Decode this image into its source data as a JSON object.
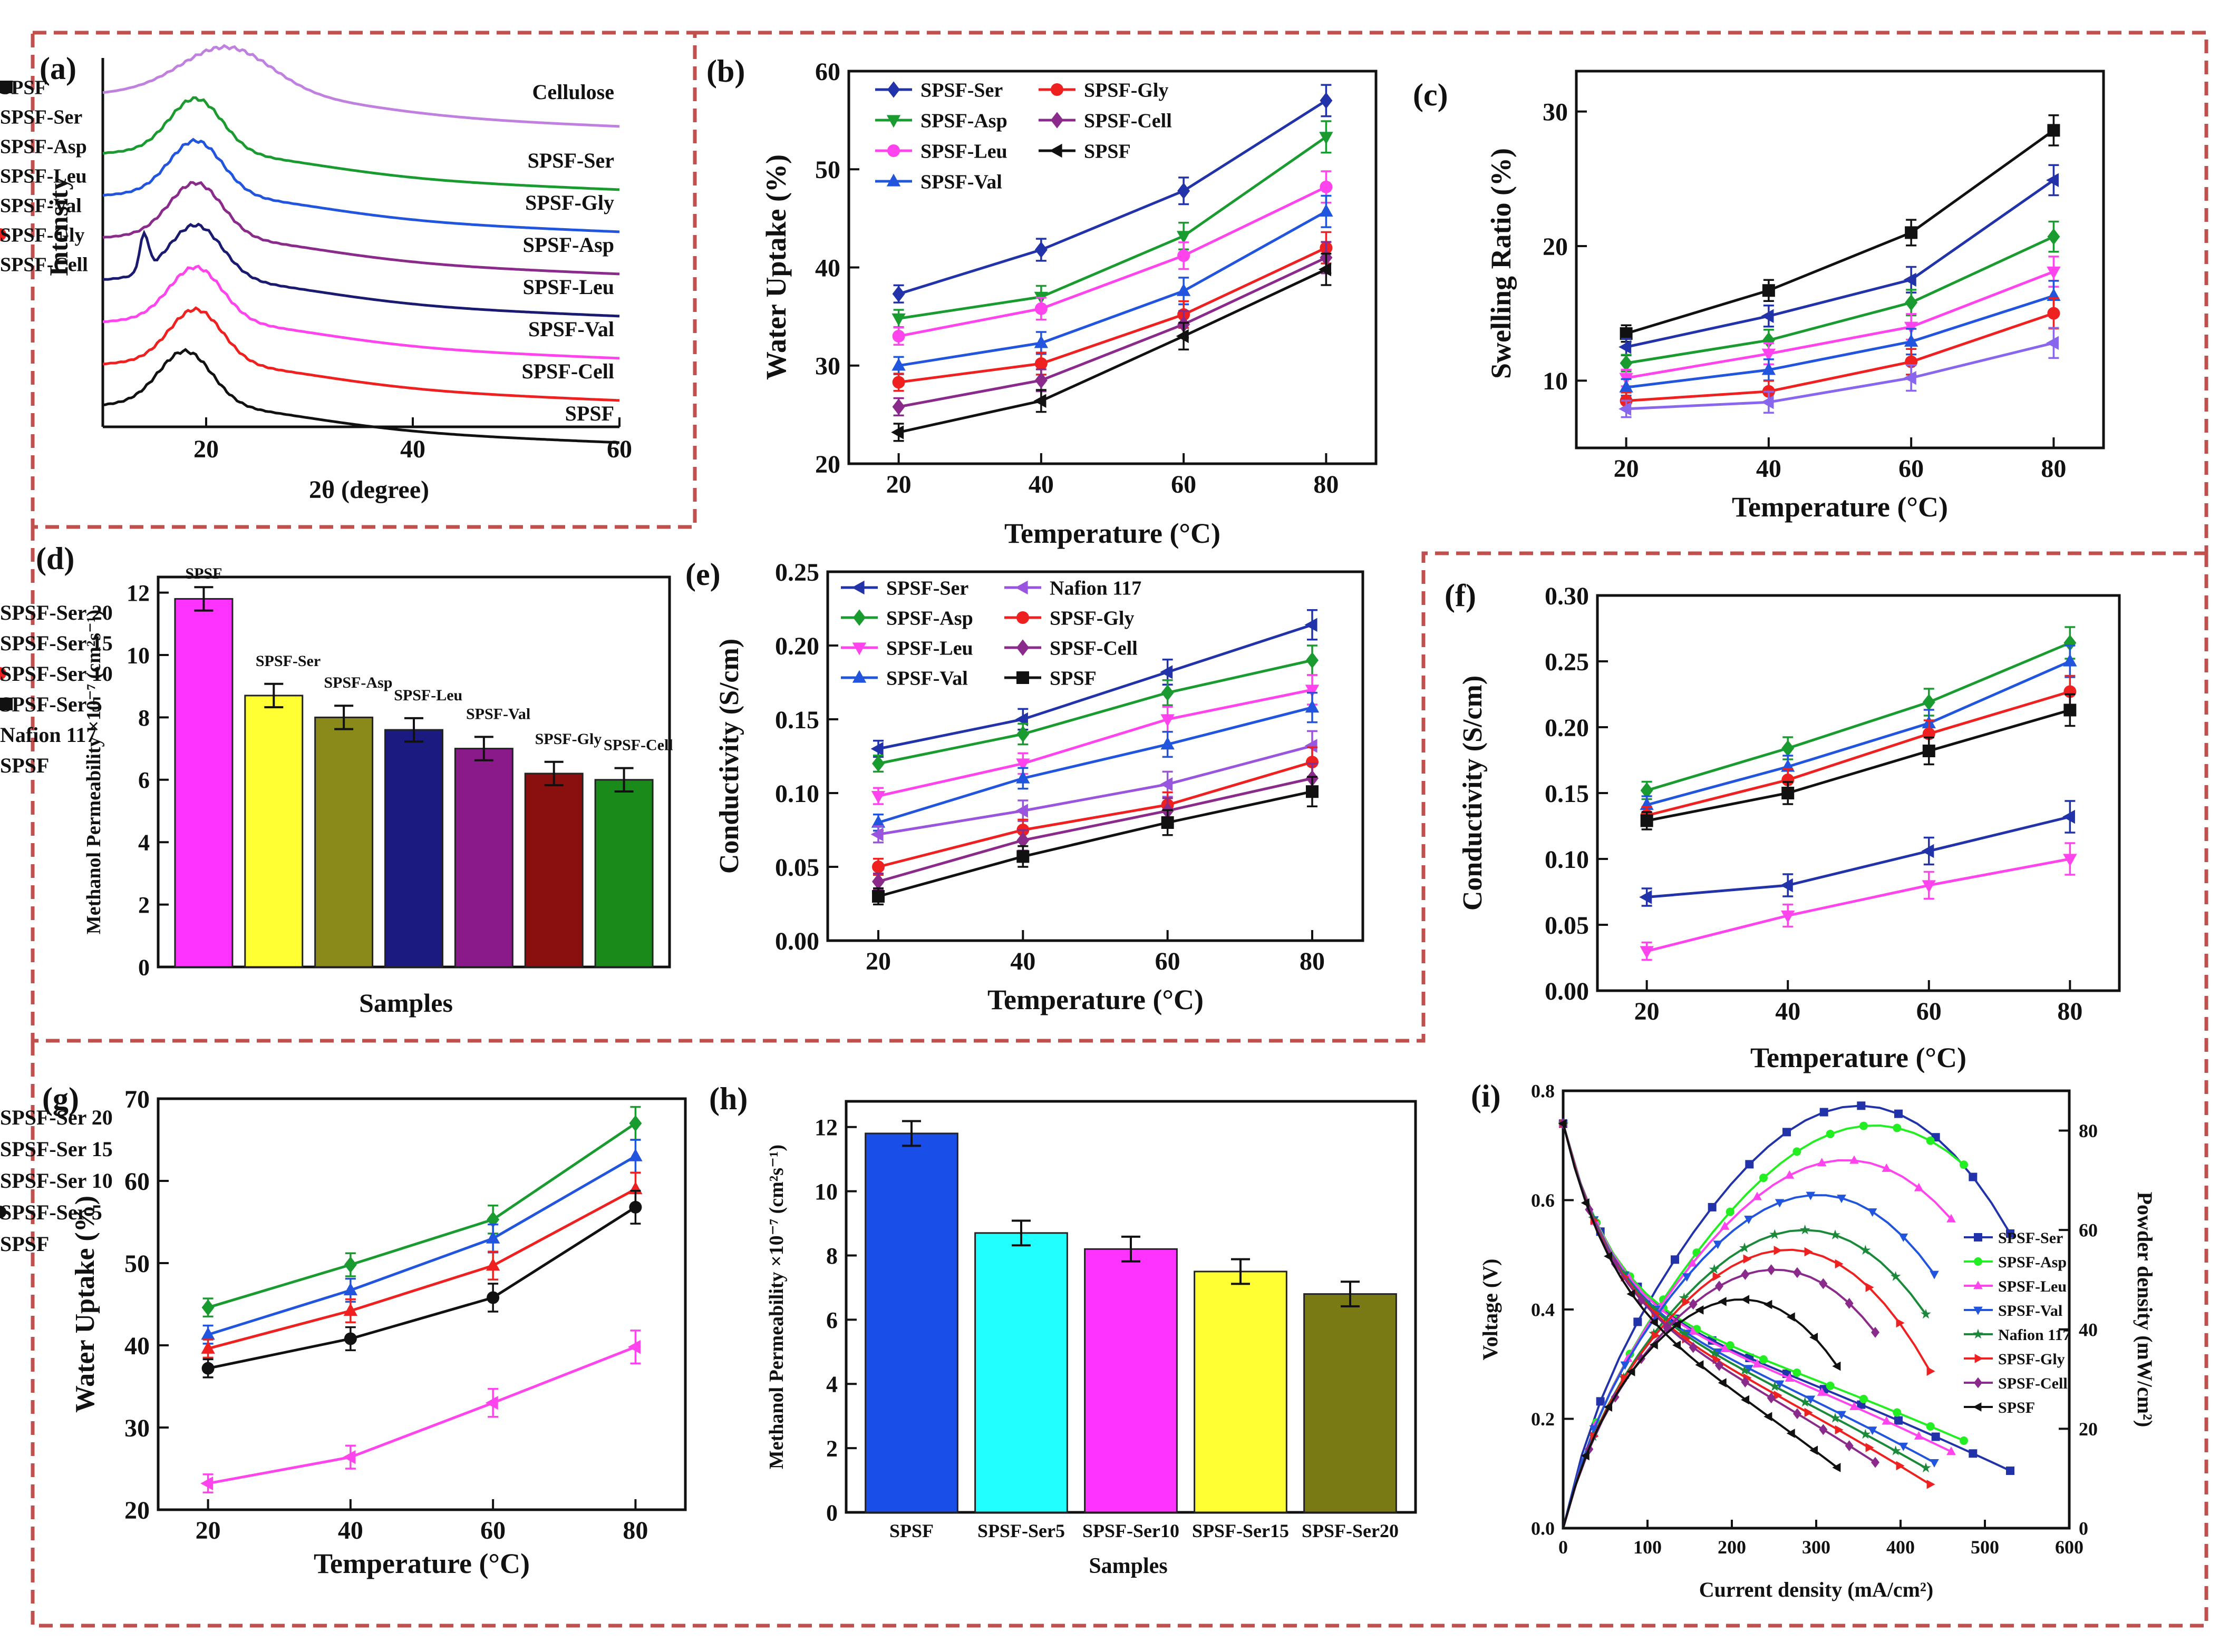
{
  "panel_labels": [
    "(a)",
    "(b)",
    "(c)",
    "(d)",
    "(e)",
    "(f)",
    "(g)",
    "(h)",
    "(i)"
  ],
  "chart_data": [
    {
      "id": "a",
      "type": "line",
      "xlabel": "2θ (degree)",
      "ylabel": "Intensity",
      "xlim": [
        10,
        60
      ],
      "xticks": [
        20,
        40,
        60
      ],
      "series": [
        {
          "name": "Cellulose",
          "color": "#c080e0",
          "peak": 22
        },
        {
          "name": "SPSF-Ser",
          "color": "#1a9b30",
          "peak": 19
        },
        {
          "name": "SPSF-Gly",
          "color": "#2255dd",
          "peak": 19
        },
        {
          "name": "SPSF-Asp",
          "color": "#8a2a8a",
          "peak": 19
        },
        {
          "name": "SPSF-Leu",
          "color": "#1a1a70",
          "peak": 19
        },
        {
          "name": "SPSF-Val",
          "color": "#ff44ee",
          "peak": 19
        },
        {
          "name": "SPSF-Cell",
          "color": "#ee2020",
          "peak": 19
        },
        {
          "name": "SPSF",
          "color": "#111111",
          "peak": 18
        }
      ]
    },
    {
      "id": "b",
      "type": "line",
      "xlabel": "Temperature (°C)",
      "ylabel": "Water Uptake (%)",
      "xlim": [
        13,
        87
      ],
      "ylim": [
        20,
        60
      ],
      "xticks": [
        20,
        40,
        60,
        80
      ],
      "yticks": [
        20,
        30,
        40,
        50,
        60
      ],
      "x": [
        20,
        40,
        60,
        80
      ],
      "series": [
        {
          "name": "SPSF-Ser",
          "color": "#2233aa",
          "marker": "diamond",
          "values": [
            37.3,
            41.8,
            47.8,
            57.0
          ]
        },
        {
          "name": "SPSF-Asp",
          "color": "#1a9b30",
          "marker": "tri-down",
          "values": [
            34.8,
            37.0,
            43.2,
            53.3
          ]
        },
        {
          "name": "SPSF-Leu",
          "color": "#ff44ee",
          "marker": "circle",
          "values": [
            33.0,
            35.8,
            41.2,
            48.2
          ]
        },
        {
          "name": "SPSF-Val",
          "color": "#2255dd",
          "marker": "tri-up",
          "values": [
            30.0,
            32.3,
            37.6,
            45.7
          ]
        },
        {
          "name": "SPSF-Gly",
          "color": "#ee2020",
          "marker": "circle",
          "values": [
            28.3,
            30.2,
            35.2,
            42.0
          ]
        },
        {
          "name": "SPSF-Cell",
          "color": "#8a2a8a",
          "marker": "diamond",
          "values": [
            25.8,
            28.5,
            34.2,
            41.0
          ]
        },
        {
          "name": "SPSF",
          "color": "#111111",
          "marker": "tri-left",
          "values": [
            23.2,
            26.4,
            33.0,
            39.8
          ]
        }
      ]
    },
    {
      "id": "c",
      "type": "line",
      "xlabel": "Temperature (°C)",
      "ylabel": "Swelling Ratio (%)",
      "xlim": [
        13,
        87
      ],
      "ylim": [
        5,
        33
      ],
      "xticks": [
        20,
        40,
        60,
        80
      ],
      "yticks": [
        10,
        20,
        30
      ],
      "x": [
        20,
        40,
        60,
        80
      ],
      "series": [
        {
          "name": "SPSF",
          "color": "#111111",
          "marker": "square",
          "values": [
            13.5,
            16.7,
            21.0,
            28.6
          ]
        },
        {
          "name": "SPSF-Ser",
          "color": "#2233aa",
          "marker": "tri-left",
          "values": [
            12.5,
            14.8,
            17.5,
            24.9
          ]
        },
        {
          "name": "SPSF-Asp",
          "color": "#1a9b30",
          "marker": "diamond",
          "values": [
            11.3,
            13.0,
            15.8,
            20.7
          ]
        },
        {
          "name": "SPSF-Leu",
          "color": "#ff44ee",
          "marker": "tri-down",
          "values": [
            10.2,
            12.0,
            14.0,
            18.1
          ]
        },
        {
          "name": "SPSF-Val",
          "color": "#2255dd",
          "marker": "tri-up",
          "values": [
            9.5,
            10.8,
            12.9,
            16.3
          ]
        },
        {
          "name": "SPSF-Gly",
          "color": "#ee2020",
          "marker": "circle",
          "values": [
            8.5,
            9.2,
            11.4,
            15.0
          ]
        },
        {
          "name": "SPSF-Cell",
          "color": "#8866ee",
          "marker": "tri-left",
          "values": [
            7.9,
            8.4,
            10.2,
            12.8
          ]
        }
      ]
    },
    {
      "id": "d",
      "type": "bar",
      "xlabel": "Samples",
      "ylabel": "Methanol Permeability ×10⁻⁷ (cm²s⁻¹)",
      "ylim": [
        0,
        12.5
      ],
      "yticks": [
        0,
        2,
        4,
        6,
        8,
        10,
        12
      ],
      "categories": [
        "SPSF",
        "SPSF-Ser",
        "SPSF-Asp",
        "SPSF-Leu",
        "SPSF-Val",
        "SPSF-Gly",
        "SPSF-Cell"
      ],
      "values": [
        11.8,
        8.7,
        8.0,
        7.6,
        7.0,
        6.2,
        6.0
      ],
      "colors": [
        "#ff33ff",
        "#ffff33",
        "#8a8a1a",
        "#1a1a80",
        "#8a1a8a",
        "#8a1010",
        "#1a8a1a"
      ]
    },
    {
      "id": "e",
      "type": "line",
      "xlabel": "Temperature (°C)",
      "ylabel": "Conductivity (S/cm)",
      "xlim": [
        13,
        87
      ],
      "ylim": [
        0,
        0.25
      ],
      "xticks": [
        20,
        40,
        60,
        80
      ],
      "yticks": [
        "0.00",
        "0.05",
        "0.10",
        "0.15",
        "0.20",
        "0.25"
      ],
      "x": [
        20,
        40,
        60,
        80
      ],
      "series": [
        {
          "name": "SPSF-Ser",
          "color": "#2233aa",
          "marker": "tri-left",
          "values": [
            0.13,
            0.15,
            0.182,
            0.214
          ]
        },
        {
          "name": "SPSF-Asp",
          "color": "#1a9b30",
          "marker": "diamond",
          "values": [
            0.12,
            0.14,
            0.168,
            0.19
          ]
        },
        {
          "name": "SPSF-Leu",
          "color": "#ff44ee",
          "marker": "tri-down",
          "values": [
            0.098,
            0.12,
            0.15,
            0.17
          ]
        },
        {
          "name": "SPSF-Val",
          "color": "#2255dd",
          "marker": "tri-up",
          "values": [
            0.08,
            0.11,
            0.133,
            0.158
          ]
        },
        {
          "name": "Nafion 117",
          "color": "#9955dd",
          "marker": "tri-left",
          "values": [
            0.072,
            0.088,
            0.106,
            0.132
          ]
        },
        {
          "name": "SPSF-Gly",
          "color": "#ee2020",
          "marker": "circle",
          "values": [
            0.05,
            0.075,
            0.092,
            0.121
          ]
        },
        {
          "name": "SPSF-Cell",
          "color": "#8a2a8a",
          "marker": "diamond",
          "values": [
            0.04,
            0.068,
            0.088,
            0.11
          ]
        },
        {
          "name": "SPSF",
          "color": "#111111",
          "marker": "square",
          "values": [
            0.03,
            0.057,
            0.08,
            0.101
          ]
        }
      ]
    },
    {
      "id": "f",
      "type": "line",
      "xlabel": "Temperature (°C)",
      "ylabel": "Conductivity (S/cm)",
      "xlim": [
        13,
        87
      ],
      "ylim": [
        0,
        0.3
      ],
      "xticks": [
        20,
        40,
        60,
        80
      ],
      "yticks": [
        "0.00",
        "0.05",
        "0.10",
        "0.15",
        "0.20",
        "0.25",
        "0.30"
      ],
      "x": [
        20,
        40,
        60,
        80
      ],
      "series": [
        {
          "name": "SPSF-Ser 20",
          "color": "#1a9b30",
          "marker": "diamond",
          "values": [
            0.152,
            0.184,
            0.219,
            0.264
          ]
        },
        {
          "name": "SPSF-Ser 15",
          "color": "#2255dd",
          "marker": "tri-up",
          "values": [
            0.141,
            0.17,
            0.203,
            0.25
          ]
        },
        {
          "name": "SPSF-Ser 10",
          "color": "#ee2020",
          "marker": "circle",
          "values": [
            0.133,
            0.16,
            0.195,
            0.227
          ]
        },
        {
          "name": "SPSF-Ser  5",
          "color": "#111111",
          "marker": "square",
          "values": [
            0.129,
            0.15,
            0.182,
            0.213
          ]
        },
        {
          "name": "Nafion 117",
          "color": "#2233aa",
          "marker": "tri-left",
          "values": [
            0.071,
            0.08,
            0.106,
            0.132
          ]
        },
        {
          "name": "SPSF",
          "color": "#ff44ee",
          "marker": "tri-down",
          "values": [
            0.03,
            0.057,
            0.08,
            0.1
          ]
        }
      ]
    },
    {
      "id": "g",
      "type": "line",
      "xlabel": "Temperature (°C)",
      "ylabel": "Water Uptake (%)",
      "xlim": [
        13,
        87
      ],
      "ylim": [
        20,
        70
      ],
      "xticks": [
        20,
        40,
        60,
        80
      ],
      "yticks": [
        20,
        30,
        40,
        50,
        60,
        70
      ],
      "x": [
        20,
        40,
        60,
        80
      ],
      "series": [
        {
          "name": "SPSF-Ser 20",
          "color": "#1a9b30",
          "marker": "diamond",
          "values": [
            44.6,
            49.8,
            55.3,
            67.0
          ]
        },
        {
          "name": "SPSF-Ser 15",
          "color": "#2255dd",
          "marker": "tri-up",
          "values": [
            41.3,
            46.7,
            53.0,
            63.0
          ]
        },
        {
          "name": "SPSF-Ser 10",
          "color": "#ee2020",
          "marker": "tri-up",
          "values": [
            39.6,
            44.2,
            49.7,
            59.0
          ]
        },
        {
          "name": "SPSF-Ser 5",
          "color": "#111111",
          "marker": "circle",
          "values": [
            37.2,
            40.8,
            45.8,
            56.8
          ]
        },
        {
          "name": "SPSF",
          "color": "#ff44ee",
          "marker": "tri-left",
          "values": [
            23.2,
            26.4,
            33.0,
            39.8
          ]
        }
      ]
    },
    {
      "id": "h",
      "type": "bar",
      "xlabel": "Samples",
      "ylabel": "Methanol Permeability ×10⁻⁷ (cm²s⁻¹)",
      "ylim": [
        0,
        12.8
      ],
      "yticks": [
        0,
        2,
        4,
        6,
        8,
        10,
        12
      ],
      "categories": [
        "SPSF",
        "SPSF-Ser5",
        "SPSF-Ser10",
        "SPSF-Ser15",
        "SPSF-Ser20"
      ],
      "values": [
        11.8,
        8.7,
        8.2,
        7.5,
        6.8
      ],
      "colors": [
        "#1a4ee8",
        "#22ffff",
        "#ff33ff",
        "#ffff33",
        "#7a7a14"
      ]
    },
    {
      "id": "i",
      "type": "line",
      "xlabel": "Current density (mA/cm²)",
      "ylabel": "Voltage (V)",
      "ylabel_right": "Powder density (mW/cm²)",
      "xlim": [
        0,
        600
      ],
      "ylim": [
        0,
        0.8
      ],
      "ylim_right": [
        0,
        88
      ],
      "xticks": [
        0,
        100,
        200,
        300,
        400,
        500,
        600
      ],
      "yticks": [
        "0.0",
        "0.2",
        "0.4",
        "0.6",
        "0.8"
      ],
      "yticks_right": [
        0,
        20,
        40,
        60,
        80
      ],
      "series": [
        {
          "name": "SPSF-Ser",
          "color": "#2233aa",
          "marker": "square",
          "max_current": 530,
          "peak_power": 85,
          "end_voltage": 0.105
        },
        {
          "name": "SPSF-Asp",
          "color": "#22ee22",
          "marker": "circle",
          "max_current": 475,
          "peak_power": 81,
          "end_voltage": 0.16
        },
        {
          "name": "SPSF-Leu",
          "color": "#ff44ee",
          "marker": "tri-up",
          "max_current": 460,
          "peak_power": 74,
          "end_voltage": 0.14
        },
        {
          "name": "SPSF-Val",
          "color": "#2255dd",
          "marker": "tri-down",
          "max_current": 440,
          "peak_power": 67,
          "end_voltage": 0.12
        },
        {
          "name": "Nafion 117",
          "color": "#1a8a3a",
          "marker": "star",
          "max_current": 430,
          "peak_power": 60,
          "end_voltage": 0.11
        },
        {
          "name": "SPSF-Gly",
          "color": "#ee2020",
          "marker": "tri-right",
          "max_current": 435,
          "peak_power": 56,
          "end_voltage": 0.08
        },
        {
          "name": "SPSF-Cell",
          "color": "#8a2a8a",
          "marker": "diamond",
          "max_current": 370,
          "peak_power": 52,
          "end_voltage": 0.12
        },
        {
          "name": "SPSF",
          "color": "#111111",
          "marker": "tri-left",
          "max_current": 325,
          "peak_power": 46,
          "end_voltage": 0.11
        }
      ]
    }
  ]
}
